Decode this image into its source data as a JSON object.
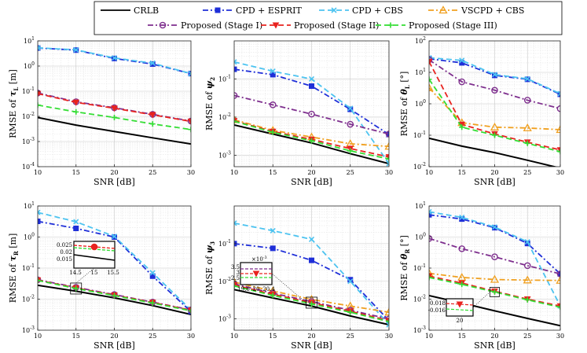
{
  "legend": {
    "entries": [
      {
        "key": "crlb",
        "label": "CRLB"
      },
      {
        "key": "esprit",
        "label": "CPD + ESPRIT"
      },
      {
        "key": "cbs",
        "label": "CPD + CBS"
      },
      {
        "key": "vscpd",
        "label": "VSCPD + CBS"
      },
      {
        "key": "stage1",
        "label": "Proposed (Stage I)"
      },
      {
        "key": "stage2",
        "label": "Proposed (Stage II)"
      },
      {
        "key": "stage3",
        "label": "Proposed (Stage III)"
      }
    ]
  },
  "styles": {
    "crlb": {
      "color": "#000000",
      "dash": "",
      "marker": "none"
    },
    "esprit": {
      "color": "#1f2fd8",
      "dash": "7,3,2,3",
      "marker": "square"
    },
    "cbs": {
      "color": "#4cc3f0",
      "dash": "7,4",
      "marker": "x"
    },
    "vscpd": {
      "color": "#f0a020",
      "dash": "7,3,2,3",
      "marker": "triangle"
    },
    "stage1": {
      "color": "#7e2f8e",
      "dash": "7,3,2,3",
      "marker": "circle"
    },
    "stage2": {
      "color": "#e8231f",
      "dash": "7,4",
      "marker": "triangle-down"
    },
    "stage3": {
      "color": "#33dd33",
      "dash": "7,4",
      "marker": "plus"
    }
  },
  "chart_data": [
    {
      "id": "tau-l",
      "type": "line",
      "ylabel_prefix": "RMSE of ",
      "ylabel_sym": "τ",
      "ylabel_sub": "L",
      "ylabel_unit": " [m]",
      "xlabel": "SNR [dB]",
      "x": [
        10,
        15,
        20,
        25,
        30
      ],
      "xlim": [
        10,
        30
      ],
      "xticks": [
        "10",
        "15",
        "20",
        "25",
        "30"
      ],
      "ylim_exp": [
        -4,
        1
      ],
      "yticks": [
        {
          "base": "10",
          "exp": "-4"
        },
        {
          "base": "10",
          "exp": "-3"
        },
        {
          "base": "10",
          "exp": "-2"
        },
        {
          "base": "10",
          "exp": "-1"
        },
        {
          "base": "10",
          "exp": "0"
        },
        {
          "base": "10",
          "exp": "1"
        }
      ],
      "series": [
        {
          "key": "crlb",
          "values": [
            0.009,
            0.0045,
            0.0025,
            0.0014,
            0.0008
          ]
        },
        {
          "key": "esprit",
          "values": [
            5.2,
            4.3,
            2.0,
            1.2,
            0.5
          ]
        },
        {
          "key": "cbs",
          "values": [
            5.3,
            4.4,
            2.1,
            1.3,
            0.5
          ]
        },
        {
          "key": "stage1",
          "values": [
            0.085,
            0.038,
            0.022,
            0.012,
            0.0065
          ]
        },
        {
          "key": "stage2",
          "values": [
            0.08,
            0.036,
            0.021,
            0.0115,
            0.0063
          ]
        },
        {
          "key": "stage3",
          "values": [
            0.028,
            0.015,
            0.009,
            0.005,
            0.003
          ]
        }
      ]
    },
    {
      "id": "psi-2",
      "type": "line",
      "ylabel_prefix": "RMSE of ",
      "ylabel_sym": "ψ",
      "ylabel_sub": "2",
      "ylabel_unit": "",
      "xlabel": "SNR [dB]",
      "x": [
        10,
        15,
        20,
        25,
        30
      ],
      "xlim": [
        10,
        30
      ],
      "xticks": [
        "10",
        "15",
        "20",
        "25",
        "30"
      ],
      "ylim_exp": [
        -3.3,
        0
      ],
      "yticks": [
        {
          "base": "10",
          "exp": "-3"
        },
        {
          "base": "10",
          "exp": "-2"
        },
        {
          "base": "10",
          "exp": "-1"
        }
      ],
      "series": [
        {
          "key": "crlb",
          "values": [
            0.0062,
            0.0036,
            0.0021,
            0.0011,
            0.0006
          ]
        },
        {
          "key": "esprit",
          "values": [
            0.18,
            0.13,
            0.065,
            0.016,
            0.0035
          ]
        },
        {
          "key": "cbs",
          "values": [
            0.28,
            0.16,
            0.1,
            0.017,
            0.0006
          ]
        },
        {
          "key": "vscpd",
          "values": [
            0.0085,
            0.0045,
            0.003,
            0.002,
            0.0017
          ]
        },
        {
          "key": "stage1",
          "values": [
            0.037,
            0.021,
            0.012,
            0.0065,
            0.0036
          ]
        },
        {
          "key": "stage2",
          "values": [
            0.008,
            0.0042,
            0.0026,
            0.0015,
            0.0009
          ]
        },
        {
          "key": "stage3",
          "values": [
            0.0078,
            0.004,
            0.0024,
            0.0013,
            0.0008
          ]
        }
      ]
    },
    {
      "id": "theta-l",
      "type": "line",
      "ylabel_prefix": "RMSE of ",
      "ylabel_sym": "θ",
      "ylabel_sub": "L",
      "ylabel_unit": " [°]",
      "xlabel": "SNR [dB]",
      "x": [
        10,
        15,
        20,
        25,
        30
      ],
      "xlim": [
        10,
        30
      ],
      "xticks": [
        "10",
        "15",
        "20",
        "25",
        "30"
      ],
      "ylim_exp": [
        -2,
        2
      ],
      "yticks": [
        {
          "base": "10",
          "exp": "-2"
        },
        {
          "base": "10",
          "exp": "-1"
        },
        {
          "base": "10",
          "exp": "0"
        },
        {
          "base": "10",
          "exp": "1"
        },
        {
          "base": "10",
          "exp": "2"
        }
      ],
      "series": [
        {
          "key": "crlb",
          "values": [
            0.08,
            0.045,
            0.028,
            0.016,
            0.009
          ]
        },
        {
          "key": "esprit",
          "values": [
            27,
            20,
            8,
            6,
            2
          ]
        },
        {
          "key": "cbs",
          "values": [
            29,
            24,
            8.5,
            6.2,
            2.1
          ]
        },
        {
          "key": "vscpd",
          "values": [
            3.2,
            0.25,
            0.18,
            0.17,
            0.15
          ]
        },
        {
          "key": "stage1",
          "values": [
            25,
            5,
            2.7,
            1.3,
            0.7
          ]
        },
        {
          "key": "stage2",
          "values": [
            22,
            0.22,
            0.11,
            0.06,
            0.034
          ]
        },
        {
          "key": "stage3",
          "values": [
            6,
            0.18,
            0.1,
            0.055,
            0.03
          ]
        }
      ]
    },
    {
      "id": "tau-r",
      "type": "line",
      "ylabel_prefix": "RMSE of ",
      "ylabel_sym": "τ",
      "ylabel_sub": "R",
      "ylabel_unit": " [m]",
      "xlabel": "SNR [dB]",
      "x": [
        10,
        15,
        20,
        25,
        30
      ],
      "xlim": [
        10,
        30
      ],
      "xticks": [
        "10",
        "15",
        "20",
        "25",
        "30"
      ],
      "ylim_exp": [
        -3,
        1
      ],
      "yticks": [
        {
          "base": "10",
          "exp": "-3"
        },
        {
          "base": "10",
          "exp": "-2"
        },
        {
          "base": "10",
          "exp": "-1"
        },
        {
          "base": "10",
          "exp": "0"
        },
        {
          "base": "10",
          "exp": "1"
        }
      ],
      "series": [
        {
          "key": "crlb",
          "values": [
            0.028,
            0.018,
            0.011,
            0.0062,
            0.0032
          ]
        },
        {
          "key": "esprit",
          "values": [
            3.2,
            1.9,
            1.0,
            0.055,
            0.004
          ]
        },
        {
          "key": "cbs",
          "values": [
            6.2,
            3.1,
            1.05,
            0.07,
            0.0045
          ]
        },
        {
          "key": "stage1",
          "values": [
            0.042,
            0.024,
            0.014,
            0.008,
            0.0045
          ]
        },
        {
          "key": "stage2",
          "values": [
            0.041,
            0.023,
            0.0135,
            0.0078,
            0.0044
          ]
        },
        {
          "key": "stage3",
          "values": [
            0.04,
            0.022,
            0.013,
            0.0075,
            0.0042
          ]
        }
      ],
      "inset": {
        "ticks_y": [
          "0.025",
          "0.02",
          "0.015"
        ],
        "ticks_x": [
          "14.5",
          "15",
          "15.5"
        ]
      }
    },
    {
      "id": "psi-3",
      "type": "line",
      "ylabel_prefix": "RMSE of ",
      "ylabel_sym": "ψ",
      "ylabel_sub": "3",
      "ylabel_unit": "",
      "xlabel": "SNR [dB]",
      "x": [
        10,
        15,
        20,
        25,
        30
      ],
      "xlim": [
        10,
        30
      ],
      "xticks": [
        "10",
        "15",
        "20",
        "25",
        "30"
      ],
      "ylim_exp": [
        -3.3,
        0
      ],
      "yticks": [
        {
          "base": "10",
          "exp": "-3"
        },
        {
          "base": "10",
          "exp": "-2"
        },
        {
          "base": "10",
          "exp": "-1"
        }
      ],
      "series": [
        {
          "key": "crlb",
          "values": [
            0.006,
            0.0036,
            0.0022,
            0.0012,
            0.0007
          ]
        },
        {
          "key": "esprit",
          "values": [
            0.1,
            0.075,
            0.036,
            0.011,
            0.0009
          ]
        },
        {
          "key": "cbs",
          "values": [
            0.35,
            0.22,
            0.13,
            0.01,
            0.0007
          ]
        },
        {
          "key": "vscpd",
          "values": [
            0.0095,
            0.0055,
            0.0033,
            0.0022,
            0.0015
          ]
        },
        {
          "key": "stage1",
          "values": [
            0.0085,
            0.0048,
            0.0029,
            0.0017,
            0.001
          ]
        },
        {
          "key": "stage2",
          "values": [
            0.008,
            0.0045,
            0.0027,
            0.0016,
            0.0009
          ]
        },
        {
          "key": "stage3",
          "values": [
            0.0075,
            0.0042,
            0.0025,
            0.0015,
            0.00085
          ]
        }
      ],
      "inset": {
        "exp_label": "×10",
        "exp_sup": "-3",
        "ticks_y": [
          "3.5",
          "3",
          "2.5"
        ],
        "ticks_x": [
          "19.6",
          "20",
          "20.4"
        ]
      }
    },
    {
      "id": "theta-r",
      "type": "line",
      "ylabel_prefix": "RMSE of ",
      "ylabel_sym": "θ",
      "ylabel_sub": "R",
      "ylabel_unit": " [°]",
      "xlabel": "SNR [dB]",
      "x": [
        10,
        15,
        20,
        25,
        30
      ],
      "xlim": [
        10,
        30
      ],
      "xticks": [
        "10",
        "15",
        "20",
        "25",
        "30"
      ],
      "ylim_exp": [
        -3,
        1
      ],
      "yticks": [
        {
          "base": "10",
          "exp": "-3"
        },
        {
          "base": "10",
          "exp": "-2"
        },
        {
          "base": "10",
          "exp": "-1"
        },
        {
          "base": "10",
          "exp": "0"
        },
        {
          "base": "10",
          "exp": "1"
        }
      ],
      "series": [
        {
          "key": "crlb",
          "values": [
            0.013,
            0.0075,
            0.0042,
            0.0024,
            0.0014
          ]
        },
        {
          "key": "esprit",
          "values": [
            5.2,
            3.8,
            2.0,
            0.62,
            0.065
          ]
        },
        {
          "key": "cbs",
          "values": [
            6.5,
            4.3,
            2.1,
            0.7,
            0.006
          ]
        },
        {
          "key": "vscpd",
          "values": [
            0.068,
            0.05,
            0.043,
            0.041,
            0.04
          ]
        },
        {
          "key": "stage1",
          "values": [
            0.9,
            0.42,
            0.23,
            0.12,
            0.065
          ]
        },
        {
          "key": "stage2",
          "values": [
            0.055,
            0.033,
            0.018,
            0.01,
            0.006
          ]
        },
        {
          "key": "stage3",
          "values": [
            0.05,
            0.03,
            0.017,
            0.0095,
            0.0055
          ]
        }
      ],
      "inset": {
        "ticks_y": [
          "0.018",
          "0.016"
        ],
        "ticks_x": [
          "20"
        ]
      }
    }
  ]
}
